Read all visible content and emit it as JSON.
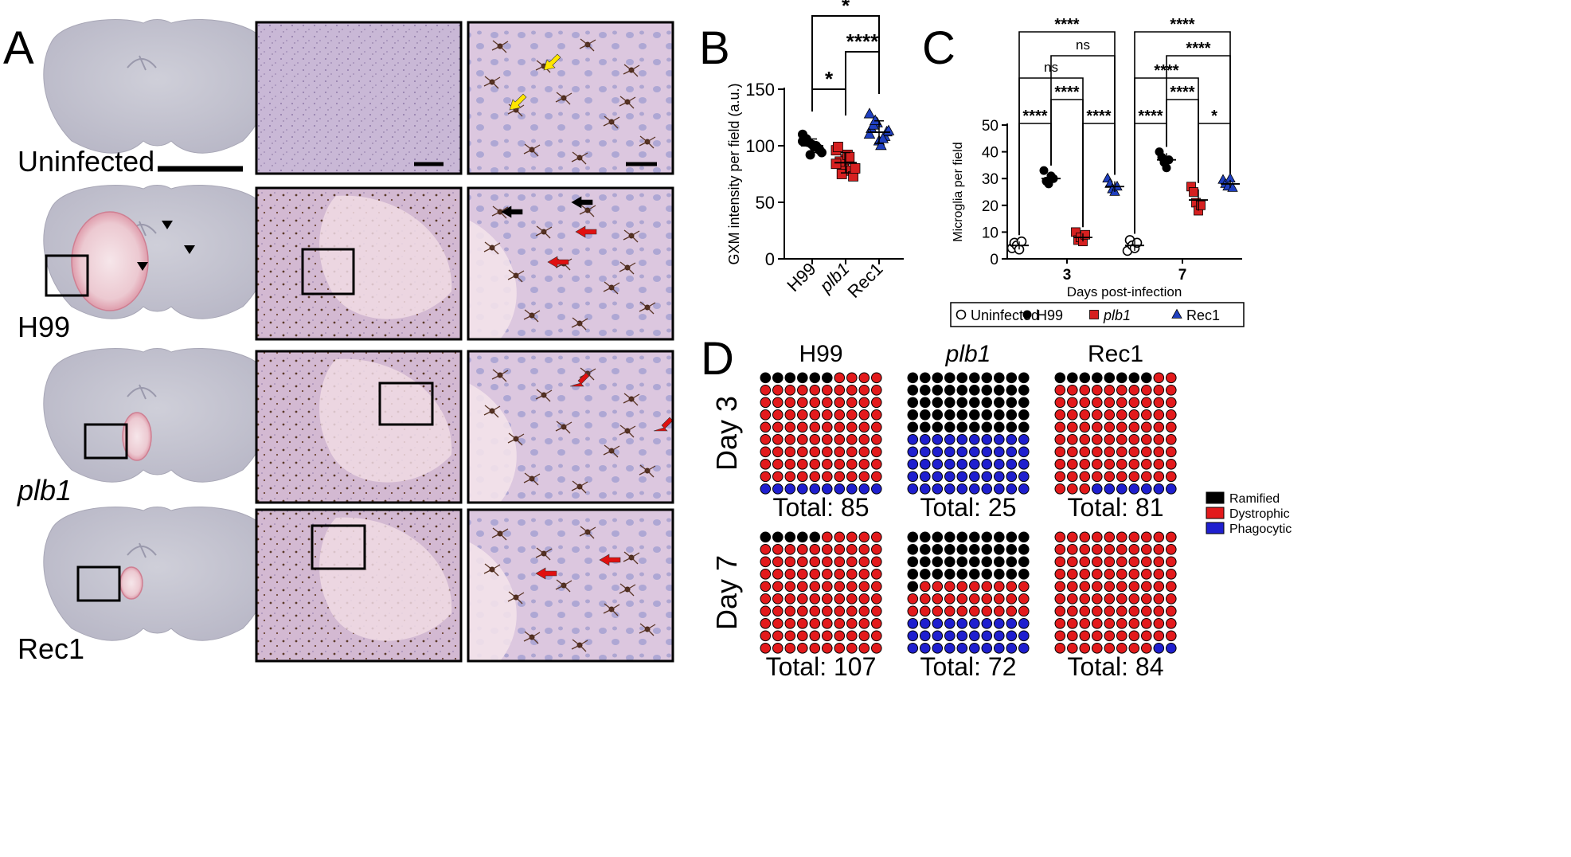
{
  "panel_A": {
    "letter": "A",
    "rows": [
      {
        "label": "Uninfected",
        "italic": false,
        "lesion": false
      },
      {
        "label": "H99",
        "italic": false,
        "lesion": true
      },
      {
        "label": "plb1",
        "italic": true,
        "lesion": true
      },
      {
        "label": "Rec1",
        "italic": false,
        "lesion": true
      }
    ]
  },
  "panel_B": {
    "letter": "B",
    "chart_data": {
      "type": "scatter",
      "ylabel": "GXM intensity per field (a.u.)",
      "ylim": [
        0,
        150
      ],
      "yticks": [
        0,
        50,
        100,
        150
      ],
      "categories": [
        "H99",
        "plb1",
        "Rec1"
      ],
      "category_italic": [
        false,
        true,
        false
      ],
      "series": [
        {
          "name": "H99",
          "marker": "circle",
          "color": "#000000",
          "mean": 100,
          "sd": 6,
          "values": [
            104,
            92,
            98,
            107,
            101,
            96,
            106,
            99,
            94,
            103,
            100,
            110
          ]
        },
        {
          "name": "plb1",
          "marker": "square",
          "color": "#d62020",
          "mean": 85,
          "sd": 9,
          "values": [
            96,
            83,
            78,
            99,
            88,
            73,
            86,
            92,
            80,
            75,
            90,
            84
          ]
        },
        {
          "name": "Rec1",
          "marker": "triangle",
          "color": "#1f3fbf",
          "mean": 112,
          "sd": 10,
          "values": [
            128,
            120,
            108,
            115,
            104,
            112,
            118,
            100,
            113,
            122,
            106,
            110
          ]
        }
      ],
      "comparisons": [
        {
          "a": 0,
          "b": 1,
          "label": "*"
        },
        {
          "a": 1,
          "b": 2,
          "label": "****"
        },
        {
          "a": 0,
          "b": 2,
          "label": "*"
        }
      ]
    }
  },
  "panel_C": {
    "letter": "C",
    "chart_data": {
      "type": "scatter",
      "xlabel": "Days post-infection",
      "ylabel": "Microglia per field",
      "ylim": [
        0,
        50
      ],
      "yticks": [
        0,
        10,
        20,
        30,
        40,
        50
      ],
      "groups": [
        "3",
        "7"
      ],
      "series": [
        {
          "name": "Uninfected",
          "marker": "open-circle",
          "color": "#000000",
          "day3": {
            "mean": 5,
            "sd": 1.5,
            "values": [
              4,
              6,
              5,
              3.5,
              6.5
            ]
          },
          "day7": {
            "mean": 5,
            "sd": 2,
            "values": [
              3,
              7,
              5,
              4,
              6
            ]
          }
        },
        {
          "name": "H99",
          "marker": "circle",
          "color": "#000000",
          "day3": {
            "mean": 30,
            "sd": 2.5,
            "values": [
              33,
              29,
              28,
              31,
              30
            ]
          },
          "day7": {
            "mean": 37,
            "sd": 2.5,
            "values": [
              40,
              38,
              36,
              34,
              37
            ]
          }
        },
        {
          "name": "plb1",
          "marker": "square",
          "color": "#d62020",
          "day3": {
            "mean": 8,
            "sd": 1.5,
            "values": [
              10,
              7,
              8,
              6.5,
              9
            ]
          },
          "day7": {
            "mean": 22,
            "sd": 4,
            "values": [
              27,
              25,
              21,
              18,
              20
            ]
          }
        },
        {
          "name": "Rec1",
          "marker": "triangle",
          "color": "#1f3fbf",
          "day3": {
            "mean": 27,
            "sd": 2,
            "values": [
              30,
              28,
              26,
              25,
              27
            ]
          },
          "day7": {
            "mean": 28,
            "sd": 1.5,
            "values": [
              29.5,
              28,
              27,
              30,
              26.5
            ]
          }
        }
      ],
      "comparisons": [
        {
          "day": "3",
          "a": 0,
          "b": 1,
          "label": "****"
        },
        {
          "day": "3",
          "a": 2,
          "b": 3,
          "label": "****"
        },
        {
          "day": "3",
          "a": 1,
          "b": 2,
          "label": "****"
        },
        {
          "day": "3",
          "a": 0,
          "b": 2,
          "label": "ns"
        },
        {
          "day": "3",
          "a": 0,
          "b": 3,
          "label": "****"
        },
        {
          "day": "3",
          "a": 1,
          "b": 3,
          "label": "ns"
        },
        {
          "day": "7",
          "a": 0,
          "b": 1,
          "label": "****"
        },
        {
          "day": "7",
          "a": 2,
          "b": 3,
          "label": "*"
        },
        {
          "day": "7",
          "a": 1,
          "b": 2,
          "label": "****"
        },
        {
          "day": "7",
          "a": 0,
          "b": 2,
          "label": "****"
        },
        {
          "day": "7",
          "a": 1,
          "b": 3,
          "label": "****"
        },
        {
          "day": "7",
          "a": 0,
          "b": 3,
          "label": "****"
        }
      ],
      "legend_entries": [
        "Uninfected",
        "H99",
        "plb1",
        "Rec1"
      ]
    }
  },
  "panel_D": {
    "letter": "D",
    "chart_data": {
      "type": "waffle",
      "columns": [
        {
          "title": "H99",
          "italic": false
        },
        {
          "title": "plb1",
          "italic": true
        },
        {
          "title": "Rec1",
          "italic": false
        }
      ],
      "rows": [
        "Day 3",
        "Day 7"
      ],
      "total_prefix": "Total: ",
      "categories": [
        {
          "name": "Ramified",
          "color": "#000000"
        },
        {
          "name": "Dystrophic",
          "color": "#e31a1c"
        },
        {
          "name": "Phagocytic",
          "color": "#1f1fcf"
        }
      ],
      "grids": [
        [
          {
            "total": 85,
            "ramified": 6,
            "dystrophic": 84,
            "phagocytic": 10
          },
          {
            "total": 25,
            "ramified": 50,
            "dystrophic": 0,
            "phagocytic": 50
          },
          {
            "total": 81,
            "ramified": 8,
            "dystrophic": 85,
            "phagocytic": 7
          }
        ],
        [
          {
            "total": 107,
            "ramified": 5,
            "dystrophic": 95,
            "phagocytic": 0
          },
          {
            "total": 72,
            "ramified": 41,
            "dystrophic": 29,
            "phagocytic": 30
          },
          {
            "total": 84,
            "ramified": 0,
            "dystrophic": 98,
            "phagocytic": 2
          }
        ]
      ]
    }
  }
}
